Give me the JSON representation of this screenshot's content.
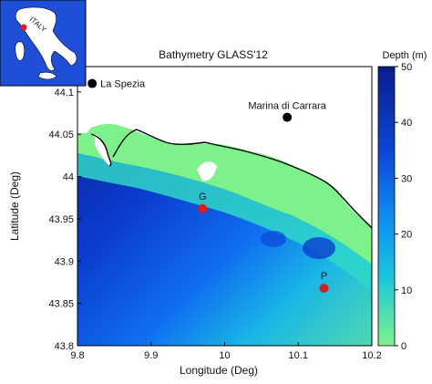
{
  "title": "Bathymetry GLASS'12",
  "xlabel": "Longitude (Deg)",
  "ylabel": "Latitude (Deg)",
  "x_ticks": [
    "9.8",
    "9.9",
    "10",
    "10.1",
    "10.2"
  ],
  "y_ticks": [
    "44.1",
    "44.05",
    "44",
    "43.95",
    "43.9",
    "43.85",
    "43.8"
  ],
  "colorbar": {
    "label": "Depth (m)",
    "ticks": [
      "50",
      "40",
      "30",
      "20",
      "10",
      "0"
    ],
    "range": [
      0,
      50
    ],
    "color_low": "#7ef28a",
    "color_high": "#0a1e8c"
  },
  "colors": {
    "land": "#ffffff",
    "coastline": "#000000",
    "sample_point": "#e31a1c",
    "city": "#000000"
  },
  "cities": [
    {
      "name": "La Spezia",
      "lon": 9.82,
      "lat": 44.11
    },
    {
      "name": "Marina di Carrara",
      "lon": 10.085,
      "lat": 44.07
    }
  ],
  "sample_points": [
    {
      "name": "G",
      "lon": 9.97,
      "lat": 43.962
    },
    {
      "name": "P",
      "lon": 10.135,
      "lat": 43.868
    }
  ],
  "inset": {
    "label": "ITALY",
    "land_color": "#ffffff",
    "marker_color": "#e31a1c"
  }
}
